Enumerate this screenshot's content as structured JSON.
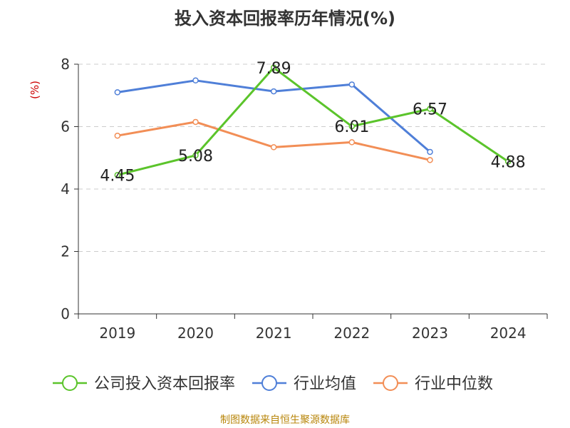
{
  "chart_data": {
    "type": "line",
    "title": "投入资本回报率历年情况(%)",
    "ylabel": "(%)",
    "categories": [
      "2019",
      "2020",
      "2021",
      "2022",
      "2023",
      "2024"
    ],
    "ylim": [
      0,
      8
    ],
    "yticks": [
      "0",
      "2",
      "4",
      "6",
      "8"
    ],
    "grid": true,
    "legend_position": "bottom",
    "series": [
      {
        "name": "公司投入资本回报率",
        "color": "#5bc42b",
        "values": [
          4.45,
          5.08,
          7.89,
          6.01,
          6.57,
          4.88
        ],
        "labels": [
          "4.45",
          "5.08",
          "7.89",
          "6.01",
          "6.57",
          "4.88"
        ]
      },
      {
        "name": "行业均值",
        "color": "#4f7fd8",
        "values": [
          7.1,
          7.48,
          7.13,
          7.35,
          5.19,
          null
        ]
      },
      {
        "name": "行业中位数",
        "color": "#f28e56",
        "values": [
          5.71,
          6.15,
          5.34,
          5.5,
          4.93,
          null
        ]
      }
    ]
  },
  "source": "制图数据来自恒生聚源数据库"
}
